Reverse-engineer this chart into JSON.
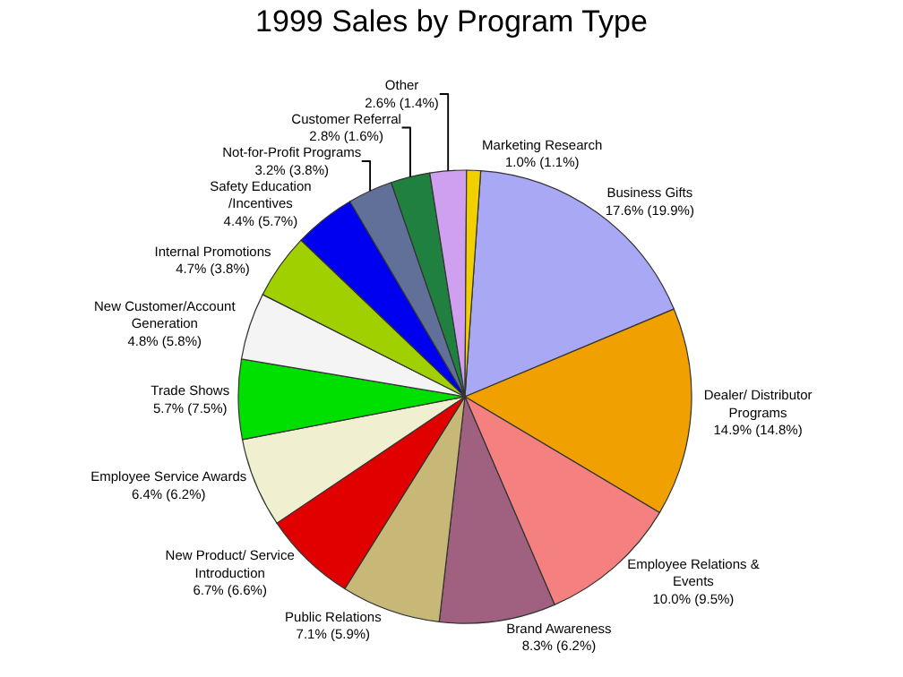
{
  "chart_data": {
    "type": "pie",
    "title": "1999 Sales by Program Type",
    "categories": [
      "Business Gifts",
      "Dealer/ Distributor Programs",
      "Employee Relations & Events",
      "Brand Awareness",
      "Public Relations",
      "New Product/ Service Introduction",
      "Employee Service Awards",
      "Trade Shows",
      "New Customer/Account Generation",
      "Internal Promotions",
      "Safety Education /Incentives",
      "Not-for-Profit Programs",
      "Customer Referral",
      "Other",
      "Marketing Research"
    ],
    "values": [
      17.6,
      14.9,
      10.0,
      8.3,
      7.1,
      6.7,
      6.4,
      5.7,
      4.8,
      4.7,
      4.4,
      3.2,
      2.8,
      2.6,
      1.0
    ],
    "value_labels": [
      "17.6% (19.9%)",
      "14.9% (14.8%)",
      "10.0% (9.5%)",
      "8.3% (6.2%)",
      "7.1% (5.9%)",
      "6.7% (6.6%)",
      "6.4% (6.2%)",
      "5.7% (7.5%)",
      "4.8% (5.8%)",
      "4.7% (3.8%)",
      "4.4% (5.7%)",
      "3.2% (3.8%)",
      "2.8% (1.6%)",
      "2.6% (1.4%)",
      "1.0% (1.1%)"
    ],
    "colors": [
      "#a8a8f4",
      "#f0a000",
      "#f48080",
      "#a06080",
      "#c8b878",
      "#e00000",
      "#f0f0d0",
      "#00e000",
      "#f4f4f4",
      "#a0d000",
      "#0000f0",
      "#607098",
      "#208040",
      "#d0a0f0",
      "#f0d000"
    ],
    "legend": false
  }
}
